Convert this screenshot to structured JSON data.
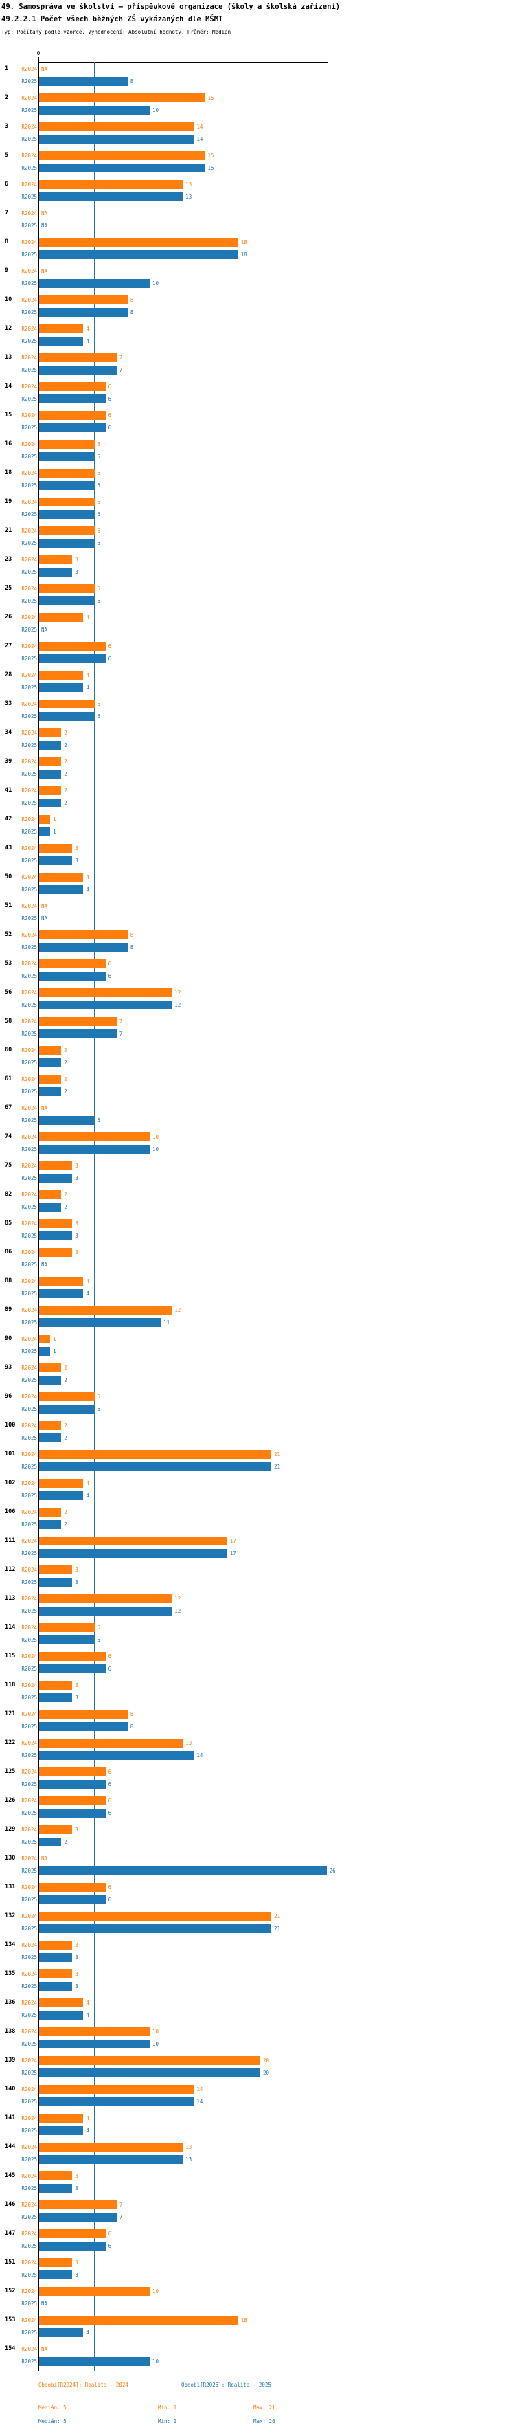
{
  "title": "49. Samospráva ve školství – příspěvkové organizace (školy a školská zařízení)",
  "subtitle": "49.2.2.1 Počet všech běžných ZŠ vykázaných dle MŠMT",
  "type_line": "Typ: Počítaný podle vzorce, Vyhodnocení: Absolutní hodnoty, Průměr: Medián",
  "axis": {
    "zero_label": "0"
  },
  "na_label": "NA",
  "series_labels": {
    "r2024": "R2024",
    "r2025": "R2025"
  },
  "legend": {
    "r2024": "Období[R2024]: Realita - 2024",
    "r2025": "Období[R2025]: Realita - 2025"
  },
  "stats": {
    "r2024": {
      "median": "Medián: 5",
      "min": "Min: 1",
      "max": "Max: 21"
    },
    "r2025": {
      "median": "Medián: 5",
      "min": "Min: 1",
      "max": "Max: 26"
    }
  },
  "colors": {
    "r2024": "#ff7f0e",
    "r2025": "#1f77b4",
    "median_line": "#1f77b4",
    "axis": "#000000"
  },
  "chart_data": {
    "type": "bar",
    "orientation": "horizontal",
    "series": [
      "R2024",
      "R2025"
    ],
    "x_axis": {
      "min": 0,
      "max": 26,
      "shown_tick_labels": [
        "0"
      ],
      "median_line_at": 5
    },
    "summary": {
      "R2024": {
        "median": 5,
        "min": 1,
        "max": 21
      },
      "R2025": {
        "median": 5,
        "min": 1,
        "max": 26
      }
    },
    "rows_format": [
      "category",
      "R2024_value",
      "R2025_value"
    ],
    "rows": [
      [
        "1",
        null,
        8
      ],
      [
        "2",
        15,
        10
      ],
      [
        "3",
        14,
        14
      ],
      [
        "5",
        15,
        15
      ],
      [
        "6",
        13,
        13
      ],
      [
        "7",
        null,
        null
      ],
      [
        "8",
        18,
        18
      ],
      [
        "9",
        null,
        10
      ],
      [
        "10",
        8,
        8
      ],
      [
        "12",
        4,
        4
      ],
      [
        "13",
        7,
        7
      ],
      [
        "14",
        6,
        6
      ],
      [
        "15",
        6,
        6
      ],
      [
        "16",
        5,
        5
      ],
      [
        "18",
        5,
        5
      ],
      [
        "19",
        5,
        5
      ],
      [
        "21",
        5,
        5
      ],
      [
        "23",
        3,
        3
      ],
      [
        "25",
        5,
        5
      ],
      [
        "26",
        4,
        null
      ],
      [
        "27",
        6,
        6
      ],
      [
        "28",
        4,
        4
      ],
      [
        "33",
        5,
        5
      ],
      [
        "34",
        2,
        2
      ],
      [
        "39",
        2,
        2
      ],
      [
        "41",
        2,
        2
      ],
      [
        "42",
        1,
        1
      ],
      [
        "43",
        3,
        3
      ],
      [
        "50",
        4,
        4
      ],
      [
        "51",
        null,
        null
      ],
      [
        "52",
        8,
        8
      ],
      [
        "53",
        6,
        6
      ],
      [
        "56",
        12,
        12
      ],
      [
        "58",
        7,
        7
      ],
      [
        "60",
        2,
        2
      ],
      [
        "61",
        2,
        2
      ],
      [
        "67",
        null,
        5
      ],
      [
        "74",
        10,
        10
      ],
      [
        "75",
        3,
        3
      ],
      [
        "82",
        2,
        2
      ],
      [
        "85",
        3,
        3
      ],
      [
        "86",
        3,
        null
      ],
      [
        "88",
        4,
        4
      ],
      [
        "89",
        12,
        11
      ],
      [
        "90",
        1,
        1
      ],
      [
        "93",
        2,
        2
      ],
      [
        "96",
        5,
        5
      ],
      [
        "100",
        2,
        2
      ],
      [
        "101",
        21,
        21
      ],
      [
        "102",
        4,
        4
      ],
      [
        "106",
        2,
        2
      ],
      [
        "111",
        17,
        17
      ],
      [
        "112",
        3,
        3
      ],
      [
        "113",
        12,
        12
      ],
      [
        "114",
        5,
        5
      ],
      [
        "115",
        6,
        6
      ],
      [
        "118",
        3,
        3
      ],
      [
        "121",
        8,
        8
      ],
      [
        "122",
        13,
        14
      ],
      [
        "125",
        6,
        6
      ],
      [
        "126",
        6,
        6
      ],
      [
        "129",
        3,
        2
      ],
      [
        "130",
        null,
        26
      ],
      [
        "131",
        6,
        6
      ],
      [
        "132",
        21,
        21
      ],
      [
        "134",
        3,
        3
      ],
      [
        "135",
        3,
        3
      ],
      [
        "136",
        4,
        4
      ],
      [
        "138",
        10,
        10
      ],
      [
        "139",
        20,
        20
      ],
      [
        "140",
        14,
        14
      ],
      [
        "141",
        4,
        4
      ],
      [
        "144",
        13,
        13
      ],
      [
        "145",
        3,
        3
      ],
      [
        "146",
        7,
        7
      ],
      [
        "147",
        6,
        6
      ],
      [
        "151",
        3,
        3
      ],
      [
        "152",
        10,
        null
      ],
      [
        "153",
        18,
        4
      ],
      [
        "154",
        null,
        10
      ]
    ]
  }
}
